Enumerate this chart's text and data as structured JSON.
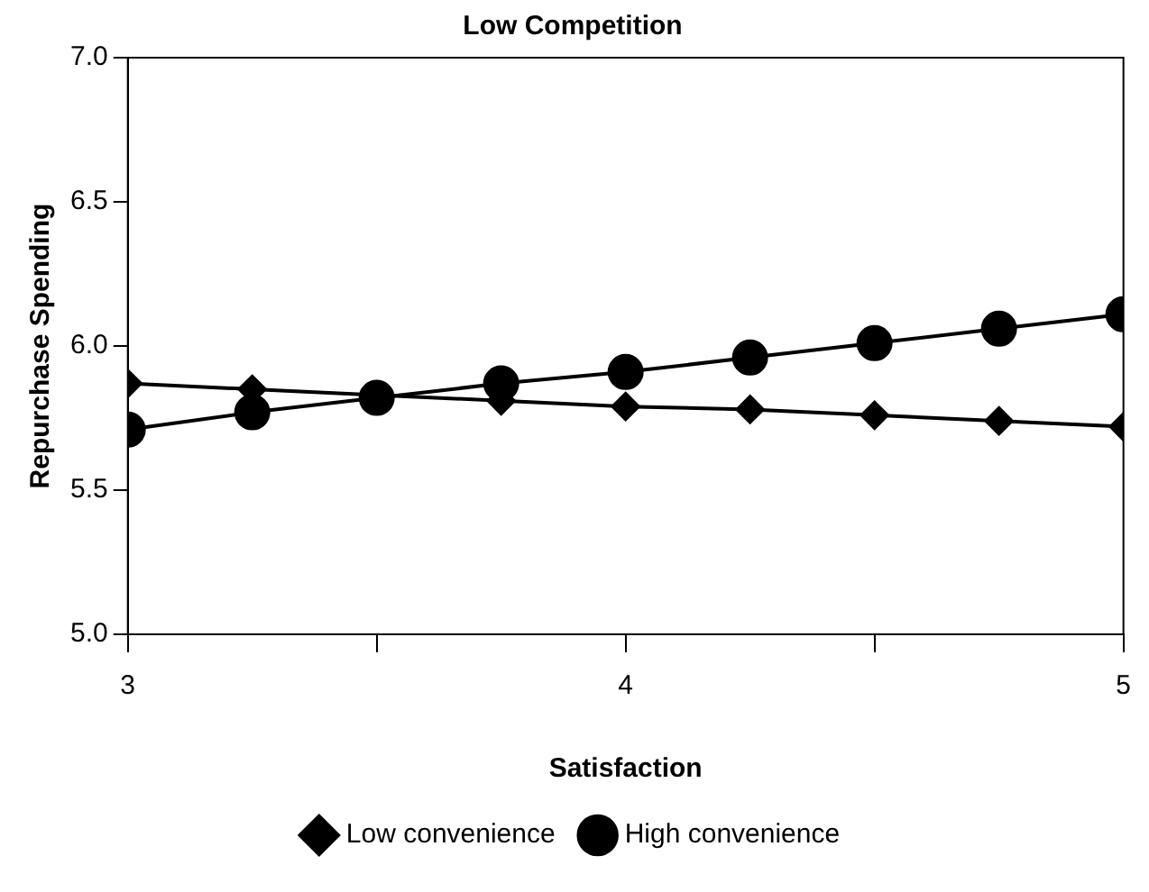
{
  "chart_data": {
    "type": "line",
    "title": "Low Competition",
    "xlabel": "Satisfaction",
    "ylabel": "Repurchase Spending",
    "x": [
      3,
      3.25,
      3.5,
      3.75,
      4,
      4.25,
      4.5,
      4.75,
      5
    ],
    "series": [
      {
        "name": "Low convenience",
        "color": "#000000",
        "marker": "diamond",
        "values": [
          5.87,
          5.85,
          5.83,
          5.81,
          5.79,
          5.78,
          5.76,
          5.74,
          5.72
        ]
      },
      {
        "name": "High convenience",
        "color": "#000000",
        "marker": "circle",
        "values": [
          5.71,
          5.77,
          5.82,
          5.87,
          5.91,
          5.96,
          6.01,
          6.06,
          6.11
        ]
      }
    ],
    "xlim": [
      3,
      5
    ],
    "xticks": [
      3,
      {
        "value": 3.5,
        "label": null
      },
      4,
      {
        "value": 4.5,
        "label": null
      },
      5
    ],
    "ylim": [
      5,
      7
    ],
    "yticks": [
      {
        "value": 5,
        "label": "5.0"
      },
      5.5,
      {
        "value": 6,
        "label": "6.0"
      },
      6.5,
      {
        "value": 7,
        "label": "7.0"
      }
    ],
    "grid": false,
    "legend": "bottom",
    "line_style": "solid"
  }
}
